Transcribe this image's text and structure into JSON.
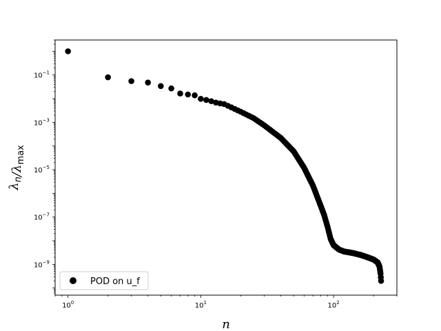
{
  "chart_data": {
    "type": "scatter",
    "xlabel": "n",
    "ylabel": "λ_n/λ_max",
    "xscale": "log",
    "yscale": "log",
    "xlim": [
      0.8,
      300
    ],
    "ylim": [
      5e-11,
      3
    ],
    "xticks": [
      {
        "value": 1,
        "mantissa": "10",
        "exp": "0"
      },
      {
        "value": 10,
        "mantissa": "10",
        "exp": "1"
      },
      {
        "value": 100,
        "mantissa": "10",
        "exp": "2"
      }
    ],
    "yticks": [
      {
        "value": 0.1,
        "mantissa": "10",
        "exp": "−1"
      },
      {
        "value": 0.001,
        "mantissa": "10",
        "exp": "−3"
      },
      {
        "value": 1e-05,
        "mantissa": "10",
        "exp": "−5"
      },
      {
        "value": 1e-07,
        "mantissa": "10",
        "exp": "−7"
      },
      {
        "value": 1e-09,
        "mantissa": "10",
        "exp": "−9"
      }
    ],
    "grid": false,
    "legend_position": "lower-left",
    "marker_color": "#000000",
    "series": [
      {
        "name": "POD on u_f",
        "anchors": [
          [
            1,
            1.0
          ],
          [
            2,
            0.08
          ],
          [
            3,
            0.055
          ],
          [
            4,
            0.048
          ],
          [
            5,
            0.034
          ],
          [
            6,
            0.027
          ],
          [
            7,
            0.0165
          ],
          [
            8,
            0.015
          ],
          [
            9,
            0.0138
          ],
          [
            10,
            0.0098
          ],
          [
            11,
            0.0088
          ],
          [
            12,
            0.0078
          ],
          [
            13,
            0.0068
          ],
          [
            14,
            0.0063
          ],
          [
            15,
            0.0059
          ],
          [
            20,
            0.0028
          ],
          [
            25,
            0.0015
          ],
          [
            30,
            0.00075
          ],
          [
            40,
            0.00022
          ],
          [
            50,
            6e-05
          ],
          [
            60,
            1.2e-05
          ],
          [
            70,
            2.1e-06
          ],
          [
            80,
            3e-07
          ],
          [
            85,
            1.2e-07
          ],
          [
            90,
            4e-08
          ],
          [
            95,
            1.2e-08
          ],
          [
            100,
            6.5e-09
          ],
          [
            110,
            4.2e-09
          ],
          [
            120,
            3.5e-09
          ],
          [
            140,
            3e-09
          ],
          [
            160,
            2.5e-09
          ],
          [
            180,
            2e-09
          ],
          [
            200,
            1.6e-09
          ],
          [
            215,
            1.2e-09
          ],
          [
            222,
            8e-10
          ],
          [
            226,
            4e-10
          ],
          [
            228,
            2e-10
          ]
        ]
      }
    ]
  }
}
